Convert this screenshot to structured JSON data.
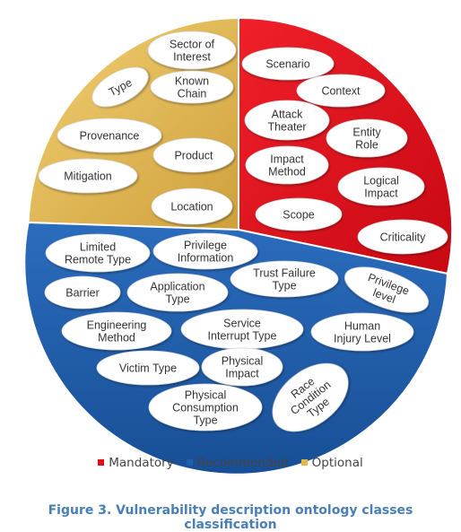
{
  "colors": {
    "mandatory": "#e20d17",
    "recommended": "#1f5fae",
    "optional": "#e3b64a"
  },
  "legend": [
    {
      "label": "Mandatory",
      "category": "mandatory"
    },
    {
      "label": "Recommended",
      "category": "recommended"
    },
    {
      "label": "Optional",
      "category": "optional"
    }
  ],
  "caption": "Figure 3. Vulnerability description ontology classes classification",
  "classes": {
    "optional": [
      {
        "id": "sector-of-interest",
        "lines": [
          "Sector of",
          "Interest"
        ]
      },
      {
        "id": "type",
        "lines": [
          "Type"
        ]
      },
      {
        "id": "known-chain",
        "lines": [
          "Known",
          "Chain"
        ]
      },
      {
        "id": "provenance",
        "lines": [
          "Provenance"
        ]
      },
      {
        "id": "product",
        "lines": [
          "Product"
        ]
      },
      {
        "id": "mitigation",
        "lines": [
          "Mitigation"
        ]
      },
      {
        "id": "location",
        "lines": [
          "Location"
        ]
      }
    ],
    "mandatory": [
      {
        "id": "scenario",
        "lines": [
          "Scenario"
        ]
      },
      {
        "id": "context",
        "lines": [
          "Context"
        ]
      },
      {
        "id": "attack-theater",
        "lines": [
          "Attack",
          "Theater"
        ]
      },
      {
        "id": "entity-role",
        "lines": [
          "Entity",
          "Role"
        ]
      },
      {
        "id": "impact-method",
        "lines": [
          "Impact",
          "Method"
        ]
      },
      {
        "id": "logical-impact",
        "lines": [
          "Logical",
          "Impact"
        ]
      },
      {
        "id": "scope",
        "lines": [
          "Scope"
        ]
      },
      {
        "id": "criticality",
        "lines": [
          "Criticality"
        ]
      }
    ],
    "recommended": [
      {
        "id": "limited-remote-type",
        "lines": [
          "Limited",
          "Remote Type"
        ]
      },
      {
        "id": "privilege-information",
        "lines": [
          "Privilege",
          "Information"
        ]
      },
      {
        "id": "trust-failure-type",
        "lines": [
          "Trust Failure",
          "Type"
        ]
      },
      {
        "id": "privilege-level",
        "lines": [
          "Privilege",
          "level"
        ]
      },
      {
        "id": "barrier",
        "lines": [
          "Barrier"
        ]
      },
      {
        "id": "application-type",
        "lines": [
          "Application",
          "Type"
        ]
      },
      {
        "id": "engineering-method",
        "lines": [
          "Engineering",
          "Method"
        ]
      },
      {
        "id": "service-interrupt-type",
        "lines": [
          "Service",
          "Interrupt Type"
        ]
      },
      {
        "id": "human-injury-level",
        "lines": [
          "Human",
          "Injury Level"
        ]
      },
      {
        "id": "victim-type",
        "lines": [
          "Victim Type"
        ]
      },
      {
        "id": "physical-impact",
        "lines": [
          "Physical",
          "Impact"
        ]
      },
      {
        "id": "race-condition-type",
        "lines": [
          "Race",
          "Condition",
          "Type"
        ]
      },
      {
        "id": "physical-consumption-type",
        "lines": [
          "Physical",
          "Consumption",
          "Type"
        ]
      }
    ]
  }
}
